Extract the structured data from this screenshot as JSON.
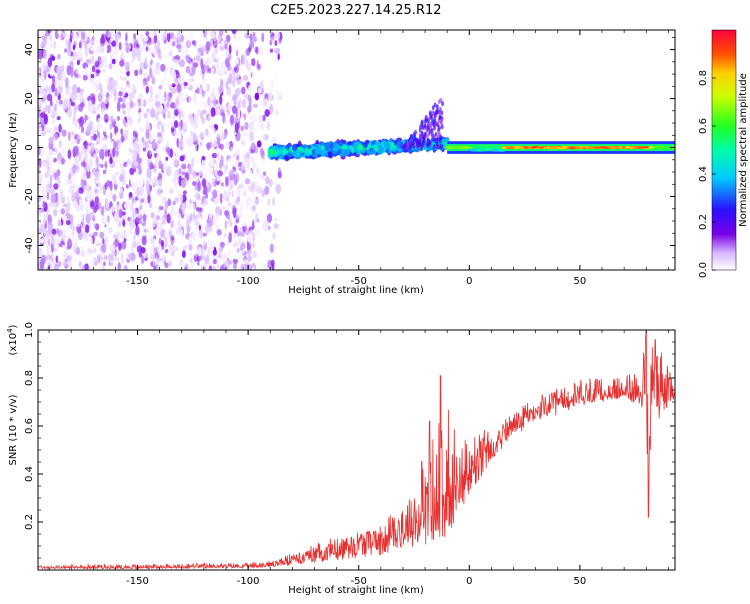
{
  "title": "C2E5.2023.227.14.25.R12",
  "chart_data": [
    {
      "type": "heatmap",
      "xlabel": "Height of straight line (km)",
      "ylabel": "Frequency (Hz)",
      "xlim": [
        -195,
        93
      ],
      "ylim": [
        -50,
        48
      ],
      "x_ticks": [
        -150,
        -100,
        -50,
        0,
        50
      ],
      "y_ticks": [
        -40,
        -20,
        0,
        20,
        40
      ],
      "colorbar": {
        "label": "Normalized spectral amplitude",
        "range": [
          0,
          1
        ],
        "ticks": [
          0.0,
          0.2,
          0.4,
          0.6,
          0.8
        ],
        "tick_labels": [
          "0.0",
          "0.2",
          "0.4",
          "0.6",
          "0.8"
        ]
      },
      "regions": [
        {
          "x": [
            -195,
            -85
          ],
          "freq": [
            -50,
            48
          ],
          "amplitude": [
            0.0,
            0.15
          ],
          "pattern": "noise"
        },
        {
          "x": [
            -90,
            -10
          ],
          "freq": [
            -6,
            6
          ],
          "amplitude": [
            0.1,
            0.55
          ],
          "pattern": "broadband"
        },
        {
          "x": [
            -30,
            -12
          ],
          "freq": [
            0,
            22
          ],
          "amplitude": [
            0.1,
            0.3
          ],
          "pattern": "plume"
        },
        {
          "x": [
            -10,
            93
          ],
          "freq": [
            -2,
            2
          ],
          "amplitude": [
            0.5,
            0.95
          ],
          "pattern": "narrow line"
        }
      ]
    },
    {
      "type": "line",
      "xlabel": "Height of straight line (km)",
      "ylabel": "SNR (10 * v/v)",
      "y_exponent": "(x10",
      "y_exponent_power": "4",
      "y_exponent_close": ")",
      "xlim": [
        -195,
        93
      ],
      "ylim": [
        0,
        1.0
      ],
      "x_ticks": [
        -150,
        -100,
        -50,
        0,
        50
      ],
      "y_ticks": [
        0.2,
        0.4,
        0.6,
        0.8,
        1.0
      ],
      "y_tick_labels": [
        "0.2",
        "0.4",
        "0.6",
        "0.8",
        "1.0"
      ],
      "color": "#e83030",
      "series_envelope": {
        "x": [
          -195,
          -150,
          -100,
          -90,
          -80,
          -70,
          -60,
          -50,
          -40,
          -30,
          -20,
          -15,
          -10,
          -5,
          0,
          10,
          20,
          30,
          40,
          50,
          60,
          70,
          80,
          85,
          93
        ],
        "low": [
          0.005,
          0.005,
          0.01,
          0.01,
          0.02,
          0.03,
          0.04,
          0.05,
          0.06,
          0.08,
          0.1,
          0.12,
          0.14,
          0.2,
          0.3,
          0.45,
          0.55,
          0.62,
          0.64,
          0.68,
          0.7,
          0.72,
          0.66,
          0.62,
          0.72
        ],
        "mid": [
          0.01,
          0.012,
          0.015,
          0.02,
          0.04,
          0.07,
          0.09,
          0.11,
          0.13,
          0.17,
          0.22,
          0.25,
          0.28,
          0.35,
          0.42,
          0.52,
          0.6,
          0.66,
          0.69,
          0.72,
          0.73,
          0.74,
          0.75,
          0.76,
          0.73
        ],
        "high": [
          0.02,
          0.025,
          0.03,
          0.04,
          0.07,
          0.11,
          0.14,
          0.17,
          0.2,
          0.3,
          0.5,
          0.62,
          0.7,
          0.55,
          0.55,
          0.6,
          0.66,
          0.72,
          0.76,
          0.8,
          0.8,
          0.8,
          0.92,
          0.95,
          0.78
        ]
      },
      "spikes": [
        {
          "x": -13,
          "y": 0.81
        },
        {
          "x": -18,
          "y": 0.62
        },
        {
          "x": 80,
          "y": 1.0
        },
        {
          "x": 81,
          "y": 0.22
        },
        {
          "x": 84,
          "y": 0.96
        }
      ]
    }
  ]
}
